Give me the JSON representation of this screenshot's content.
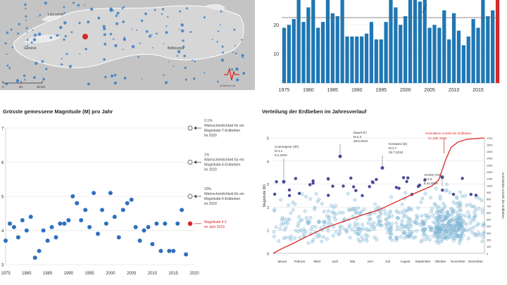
{
  "map": {
    "place_labels": [
      "Lausanne",
      "Genève",
      "Bellinzona"
    ],
    "scale_labels": [
      "0",
      "20",
      "40 km"
    ],
    "logo_text": "erdbeben.ch",
    "colors": {
      "land": "#c4c4c4",
      "lake": "#e8e8e8",
      "dot": "#3b7fc4",
      "highlight": "#d62728"
    }
  },
  "panel_titles": {
    "magnitude": "Grösste gemessene Magnitude (M) pro Jahr",
    "distribution": "Verteilung der Erdbeben im Jahresverlauf"
  },
  "chart_data": [
    {
      "id": "annual_counts",
      "type": "bar",
      "x": [
        1975,
        1976,
        1977,
        1978,
        1979,
        1980,
        1981,
        1982,
        1983,
        1984,
        1985,
        1986,
        1987,
        1988,
        1989,
        1990,
        1991,
        1992,
        1993,
        1994,
        1995,
        1996,
        1997,
        1998,
        1999,
        2000,
        2001,
        2002,
        2003,
        2004,
        2005,
        2006,
        2007,
        2008,
        2009,
        2010,
        2011,
        2012,
        2013,
        2014,
        2015,
        2016,
        2017,
        2018,
        2019
      ],
      "values": [
        19,
        20,
        22,
        30,
        21,
        26,
        30,
        19,
        21,
        29,
        24,
        23,
        29,
        16,
        16,
        16,
        16,
        17,
        21,
        15,
        15,
        21,
        30,
        26,
        20,
        23,
        29,
        30,
        28,
        30,
        19,
        20,
        19,
        25,
        15,
        24,
        18,
        13,
        16,
        22,
        19,
        30,
        23,
        25,
        29
      ],
      "highlight_index": 44,
      "xticks": [
        1975,
        1980,
        1985,
        1990,
        1995,
        2000,
        2005,
        2010,
        2015
      ],
      "yticks": [
        10,
        20
      ],
      "ylim": [
        0,
        30
      ],
      "reference_line": 22.5,
      "colors": {
        "bar": "#1f77b4",
        "highlight": "#d62728"
      }
    },
    {
      "id": "max_magnitude",
      "type": "scatter",
      "x": [
        1975,
        1976,
        1977,
        1978,
        1979,
        1980,
        1981,
        1982,
        1983,
        1984,
        1985,
        1986,
        1987,
        1988,
        1989,
        1990,
        1991,
        1992,
        1993,
        1994,
        1995,
        1996,
        1997,
        1998,
        1999,
        2000,
        2001,
        2002,
        2003,
        2004,
        2005,
        2006,
        2007,
        2008,
        2009,
        2010,
        2011,
        2012,
        2013,
        2014,
        2015,
        2016,
        2017,
        2018
      ],
      "values": [
        3.7,
        4.2,
        4.1,
        3.8,
        4.3,
        4.0,
        4.4,
        3.2,
        3.4,
        4.0,
        3.7,
        4.1,
        3.8,
        4.2,
        4.2,
        4.3,
        5.0,
        4.8,
        4.3,
        4.6,
        4.1,
        5.1,
        3.9,
        4.6,
        4.2,
        5.1,
        4.4,
        3.8,
        4.6,
        4.8,
        4.9,
        4.1,
        3.7,
        4.0,
        4.1,
        3.6,
        4.2,
        3.4,
        4.2,
        3.4,
        3.4,
        4.2,
        4.6,
        3.3
      ],
      "highlight": {
        "x": 2019,
        "value": 4.2
      },
      "xticks": [
        1975,
        1980,
        1985,
        1990,
        1995,
        2000,
        2005,
        2010,
        2015,
        2020
      ],
      "yticks": [
        3,
        4,
        5,
        6,
        7
      ],
      "ylim": [
        3,
        7
      ],
      "reference_levels": [
        {
          "y": 7,
          "label_lines": [
            "0.1%",
            "Wahrscheinlichkeit für ein",
            "Magnitude-7-Erdbeben",
            "im 2020"
          ]
        },
        {
          "y": 6,
          "label_lines": [
            "1%",
            "Wahrscheinlichkeit für ein",
            "Magnitude-6-Erdbeben",
            "im 2020"
          ]
        },
        {
          "y": 5,
          "label_lines": [
            "10%",
            "Wahrscheinlichkeit für ein",
            "Magnitude-5-Erdbeben",
            "im 2020"
          ]
        }
      ],
      "highlight_label_lines": [
        "Magnitude 4.2",
        "im Jahr 2019"
      ],
      "colors": {
        "point": "#2f6fbf",
        "highlight": "#d62728",
        "grid": "#dddddd"
      }
    },
    {
      "id": "year_distribution",
      "type": "scatter",
      "months": [
        "Januar",
        "Februar",
        "März",
        "April",
        "Mai",
        "Juni",
        "Juli",
        "August",
        "September",
        "Oktober",
        "November",
        "Dezember"
      ],
      "ylabel": "Magnitude (M)",
      "y2label": "Kumulative Anzahl der Erdbeben",
      "yticks": [
        0,
        1,
        2,
        3,
        4,
        5
      ],
      "ylim": [
        0,
        5
      ],
      "y2ticks": [
        0,
        100,
        200,
        300,
        400,
        500,
        600,
        700,
        800,
        900,
        1000,
        1100,
        1200,
        1300,
        1400,
        1500,
        1600,
        1700
      ],
      "y2lim": [
        0,
        1700
      ],
      "cumulative_series": {
        "name": "Kumulative Anzahl der Erdbeben im Jahr 2019",
        "x_month": [
          0,
          0.5,
          1,
          2,
          3,
          4,
          5,
          6,
          7,
          8,
          9,
          9.4,
          9.8,
          10.1,
          10.5,
          11,
          12
        ],
        "y": [
          0,
          70,
          130,
          260,
          380,
          470,
          560,
          640,
          760,
          880,
          990,
          1080,
          1380,
          1560,
          1640,
          1680,
          1700
        ]
      },
      "notable_events": [
        {
          "x_month": 0.6,
          "m": 3.1,
          "label_lines": [
            "Courmayeur (I/F)",
            "M 3.1",
            "5.2.2019"
          ]
        },
        {
          "x_month": 3.8,
          "m": 4.2,
          "label_lines": [
            "Nauel (F)",
            "M 4.2",
            "28.5.2019"
          ]
        },
        {
          "x_month": 6.2,
          "m": 3.7,
          "label_lines": [
            "Konstanz (D)",
            "M 3.7",
            "25.7.2019"
          ]
        },
        {
          "x_month": 9.6,
          "m": 3.3,
          "label_lines": [
            "Anzère (VS)",
            "M 3.3",
            "5.11.2019"
          ]
        }
      ],
      "colors": {
        "small": "#8ec3dd",
        "large": "#4a4a9a",
        "cumulative": "#d62728",
        "grid": "#dddddd"
      }
    }
  ]
}
